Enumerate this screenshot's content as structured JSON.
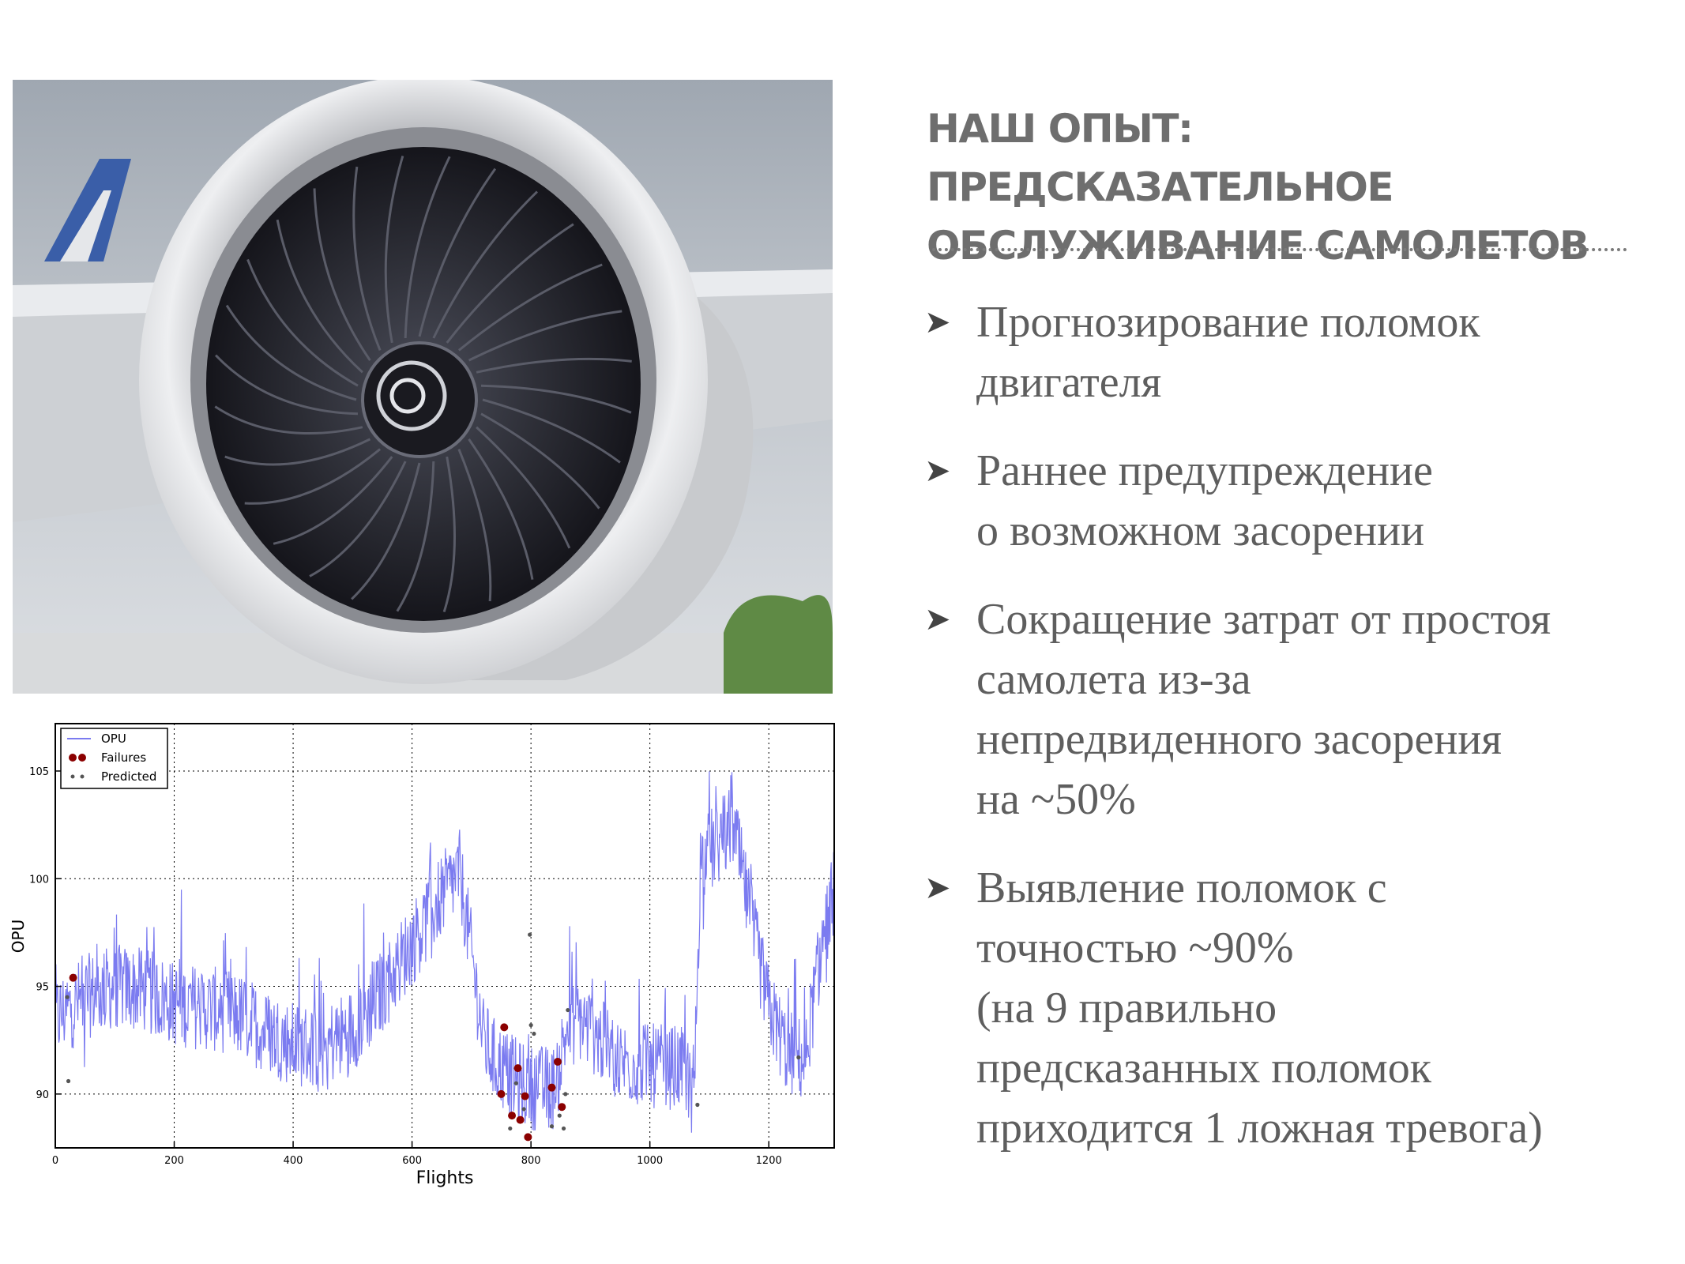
{
  "slide": {
    "title_lines": [
      "НАШ ОПЫТ: ПРЕДСКАЗАТЕЛЬНОЕ",
      "ОБСЛУЖИВАНИЕ САМОЛЕТОВ"
    ],
    "bullets": [
      {
        "lines": [
          "Прогнозирование поломок",
          "двигателя"
        ]
      },
      {
        "lines": [
          "Раннее предупреждение",
          "о возможном засорении"
        ]
      },
      {
        "lines": [
          "Сокращение затрат от простоя",
          "самолета из-за",
          "непредвиденного засорения",
          "на ~50%"
        ]
      },
      {
        "lines": [
          "Выявление поломок с",
          "точностью ~90%",
          "(на 9 правильно",
          "предсказанных поломок",
          "приходится 1 ложная тревога)"
        ]
      }
    ],
    "bullet_glyph": "➤"
  },
  "photo": {
    "subject": "jet-engine-nacelle-under-wing",
    "colors": {
      "sky": "#b9c0c8",
      "cowl": "#d9dadc",
      "fan": "#23232b",
      "tail_blue": "#3a5ea8",
      "trees": "#5f8a45"
    }
  },
  "chart_data": {
    "type": "line",
    "xlabel": "Flights",
    "ylabel": "OPU",
    "xlim": [
      0,
      1310
    ],
    "ylim": [
      87.5,
      107.2
    ],
    "xticks": [
      0,
      200,
      400,
      600,
      800,
      1000,
      1200
    ],
    "yticks": [
      90,
      95,
      100,
      105
    ],
    "grid": true,
    "legend_position": "top-left",
    "legend": [
      {
        "name": "OPU",
        "marker": "line",
        "color": "#7b7bf0"
      },
      {
        "name": "Failures",
        "marker": "big-dot",
        "color": "#8b0000"
      },
      {
        "name": "Predicted",
        "marker": "small-dot",
        "color": "#555555"
      }
    ],
    "series": [
      {
        "name": "OPU",
        "color": "#7b7bf0",
        "x": [
          0,
          50,
          100,
          150,
          200,
          250,
          300,
          350,
          400,
          450,
          500,
          550,
          600,
          650,
          680,
          700,
          720,
          740,
          760,
          780,
          800,
          820,
          840,
          860,
          880,
          900,
          950,
          1000,
          1050,
          1075,
          1085,
          1110,
          1140,
          1170,
          1200,
          1230,
          1260,
          1290,
          1310
        ],
        "values": [
          93.5,
          94.5,
          95.0,
          94.8,
          94.2,
          94.0,
          93.8,
          93.0,
          92.3,
          92.2,
          93.0,
          94.8,
          97.0,
          99.2,
          100.3,
          96.5,
          92.5,
          91.5,
          91.0,
          90.5,
          90.3,
          90.3,
          90.3,
          93.0,
          93.5,
          93.0,
          91.5,
          91.3,
          91.2,
          90.5,
          100.8,
          101.5,
          102.5,
          98.0,
          94.0,
          92.0,
          91.5,
          97.0,
          99.5
        ],
        "noise": 2.0
      },
      {
        "name": "Failures",
        "color": "#8b0000",
        "x": [
          30,
          750,
          755,
          768,
          778,
          782,
          790,
          795,
          835,
          845,
          852
        ],
        "values": [
          95.4,
          90.0,
          93.1,
          89.0,
          91.2,
          88.8,
          89.9,
          88.0,
          90.3,
          91.5,
          89.4
        ]
      },
      {
        "name": "Predicted",
        "color": "#555555",
        "x": [
          20,
          22,
          765,
          775,
          788,
          798,
          800,
          805,
          835,
          848,
          855,
          858,
          862,
          1080,
          1250
        ],
        "values": [
          94.5,
          90.6,
          88.4,
          90.5,
          89.3,
          97.4,
          93.2,
          92.8,
          88.5,
          89.0,
          88.4,
          90.0,
          93.9,
          89.5,
          91.7
        ]
      }
    ]
  }
}
